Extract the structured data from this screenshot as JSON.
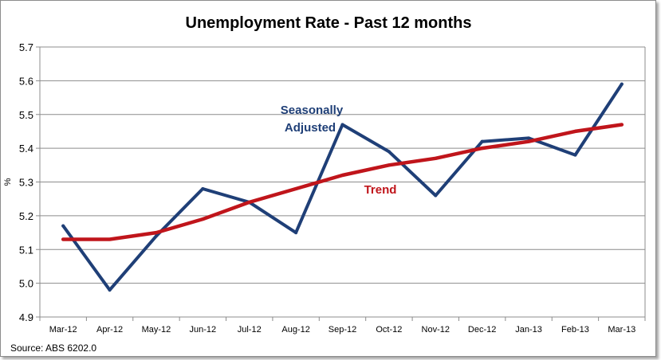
{
  "chart_data": {
    "type": "line",
    "title": "Unemployment Rate - Past 12 months",
    "xlabel": "",
    "ylabel": "%",
    "ylim": [
      4.9,
      5.7
    ],
    "yticks": [
      "4.9",
      "5.0",
      "5.1",
      "5.2",
      "5.3",
      "5.4",
      "5.5",
      "5.6",
      "5.7"
    ],
    "categories": [
      "Mar-12",
      "Apr-12",
      "May-12",
      "Jun-12",
      "Jul-12",
      "Aug-12",
      "Sep-12",
      "Oct-12",
      "Nov-12",
      "Dec-12",
      "Jan-13",
      "Feb-13",
      "Mar-13"
    ],
    "series": [
      {
        "name": "Seasonally Adjusted",
        "color": "#1f3f77",
        "values": [
          5.17,
          4.98,
          5.14,
          5.28,
          5.24,
          5.15,
          5.47,
          5.39,
          5.26,
          5.42,
          5.43,
          5.38,
          5.59
        ]
      },
      {
        "name": "Trend",
        "color": "#c0151b",
        "values": [
          5.13,
          5.13,
          5.15,
          5.19,
          5.24,
          5.28,
          5.32,
          5.35,
          5.37,
          5.4,
          5.42,
          5.45,
          5.47
        ]
      }
    ],
    "annotations": [
      {
        "text": "Seasonally",
        "series": "Seasonally Adjusted"
      },
      {
        "text": "Adjusted",
        "series": "Seasonally Adjusted"
      },
      {
        "text": "Trend",
        "series": "Trend"
      }
    ],
    "grid": true,
    "source": "Source: ABS 6202.0"
  }
}
